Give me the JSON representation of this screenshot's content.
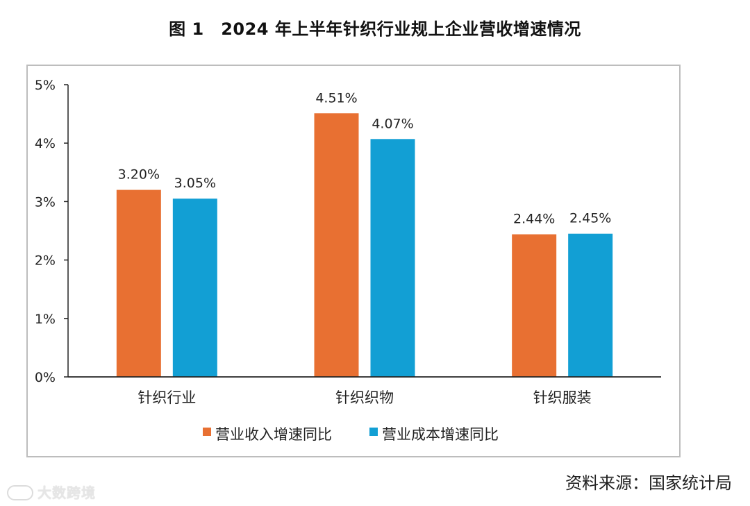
{
  "chart_data": {
    "type": "bar",
    "title": "图 1　2024 年上半年针织行业规上企业营收增速情况",
    "categories": [
      "针织行业",
      "针织织物",
      "针织服装"
    ],
    "series": [
      {
        "name": "营业收入增速同比",
        "color": "#E87032",
        "values": [
          3.2,
          4.51,
          2.44
        ],
        "labels": [
          "3.20%",
          "4.51%",
          "2.44%"
        ]
      },
      {
        "name": "营业成本增速同比",
        "color": "#129FD4",
        "values": [
          3.05,
          4.07,
          2.45
        ],
        "labels": [
          "3.05%",
          "4.07%",
          "2.45%"
        ]
      }
    ],
    "ylim": [
      0,
      5
    ],
    "yticks": [
      0,
      1,
      2,
      3,
      4,
      5
    ],
    "ytick_labels": [
      "0%",
      "1%",
      "2%",
      "3%",
      "4%",
      "5%"
    ],
    "xlabel": "",
    "ylabel": "",
    "legend_position": "bottom",
    "grid": false
  },
  "source": "资料来源：国家统计局",
  "watermark": "大数跨境"
}
